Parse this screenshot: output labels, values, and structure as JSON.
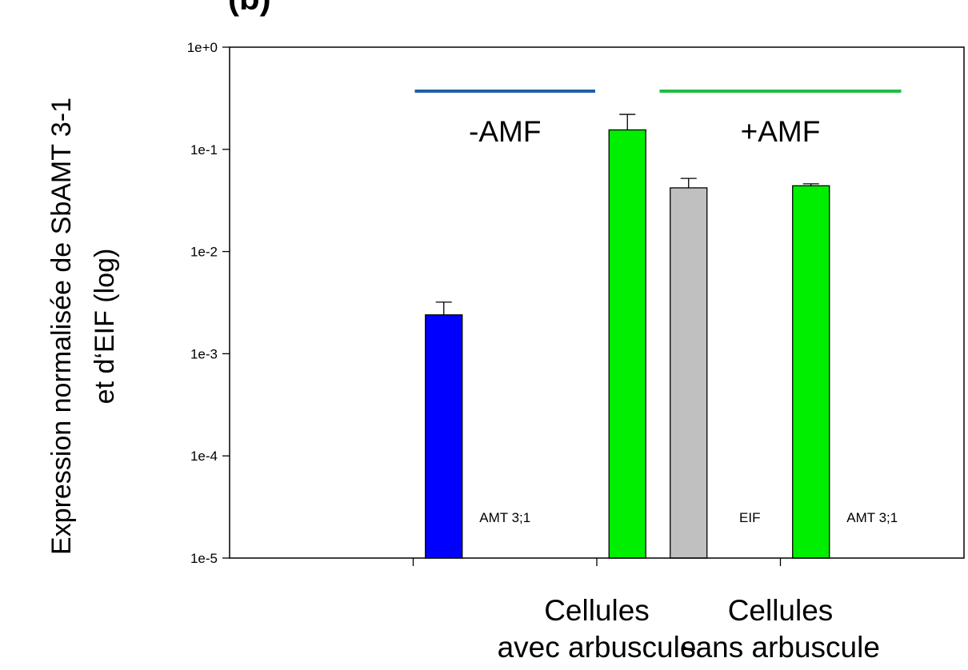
{
  "panel_label": "(b)",
  "chart_data": {
    "type": "bar",
    "title": "",
    "ylabel_lines": [
      "Expression normalisée de SbAMT 3-1",
      "et d‘EIF (log)"
    ],
    "xlabel": "",
    "y_scale": "log",
    "ylim": [
      1e-05,
      1
    ],
    "y_ticks": [
      1,
      0.1,
      0.01,
      0.001,
      0.0001,
      1e-05
    ],
    "y_tick_labels": [
      "1e+0",
      "1e-1",
      "1e-2",
      "1e-3",
      "1e-4",
      "1e-5"
    ],
    "grid": false,
    "legend": "none",
    "categories": [
      {
        "lines": [
          ""
        ]
      },
      {
        "lines": [
          "Cellules",
          "avec arbuscule"
        ]
      },
      {
        "lines": [
          "Cellules",
          "sans arbuscule"
        ]
      }
    ],
    "bars": [
      {
        "group": 0,
        "slot": 0,
        "value": 0.0024,
        "error": 0.0008,
        "color": "#0000ff"
      },
      {
        "group": 1,
        "slot": 0,
        "value": 0.155,
        "error": 0.065,
        "color": "#00ee00"
      },
      {
        "group": 1,
        "slot": 1,
        "value": 0.042,
        "error": 0.01,
        "color": "#c0c0c0"
      },
      {
        "group": 2,
        "slot": 0,
        "value": 0.044,
        "error": 0.002,
        "color": "#00ee00"
      }
    ],
    "annotations": [
      {
        "text": "AMT 3;1",
        "group": 0,
        "slot": 1
      },
      {
        "text": "EIF",
        "group": 1,
        "slot": 2
      },
      {
        "text": "AMT 3;1",
        "group": 2,
        "slot": 1
      }
    ],
    "treatment_lines": [
      {
        "label": "-AMF",
        "color": "#1f5fa8",
        "from": {
          "group": 0,
          "slot": 0
        },
        "to": {
          "group": 0,
          "slot": 2
        }
      },
      {
        "label": "+AMF",
        "color": "#22bb44",
        "from": {
          "group": 1,
          "slot": 1
        },
        "to": {
          "group": 2,
          "slot": 1
        }
      }
    ]
  }
}
